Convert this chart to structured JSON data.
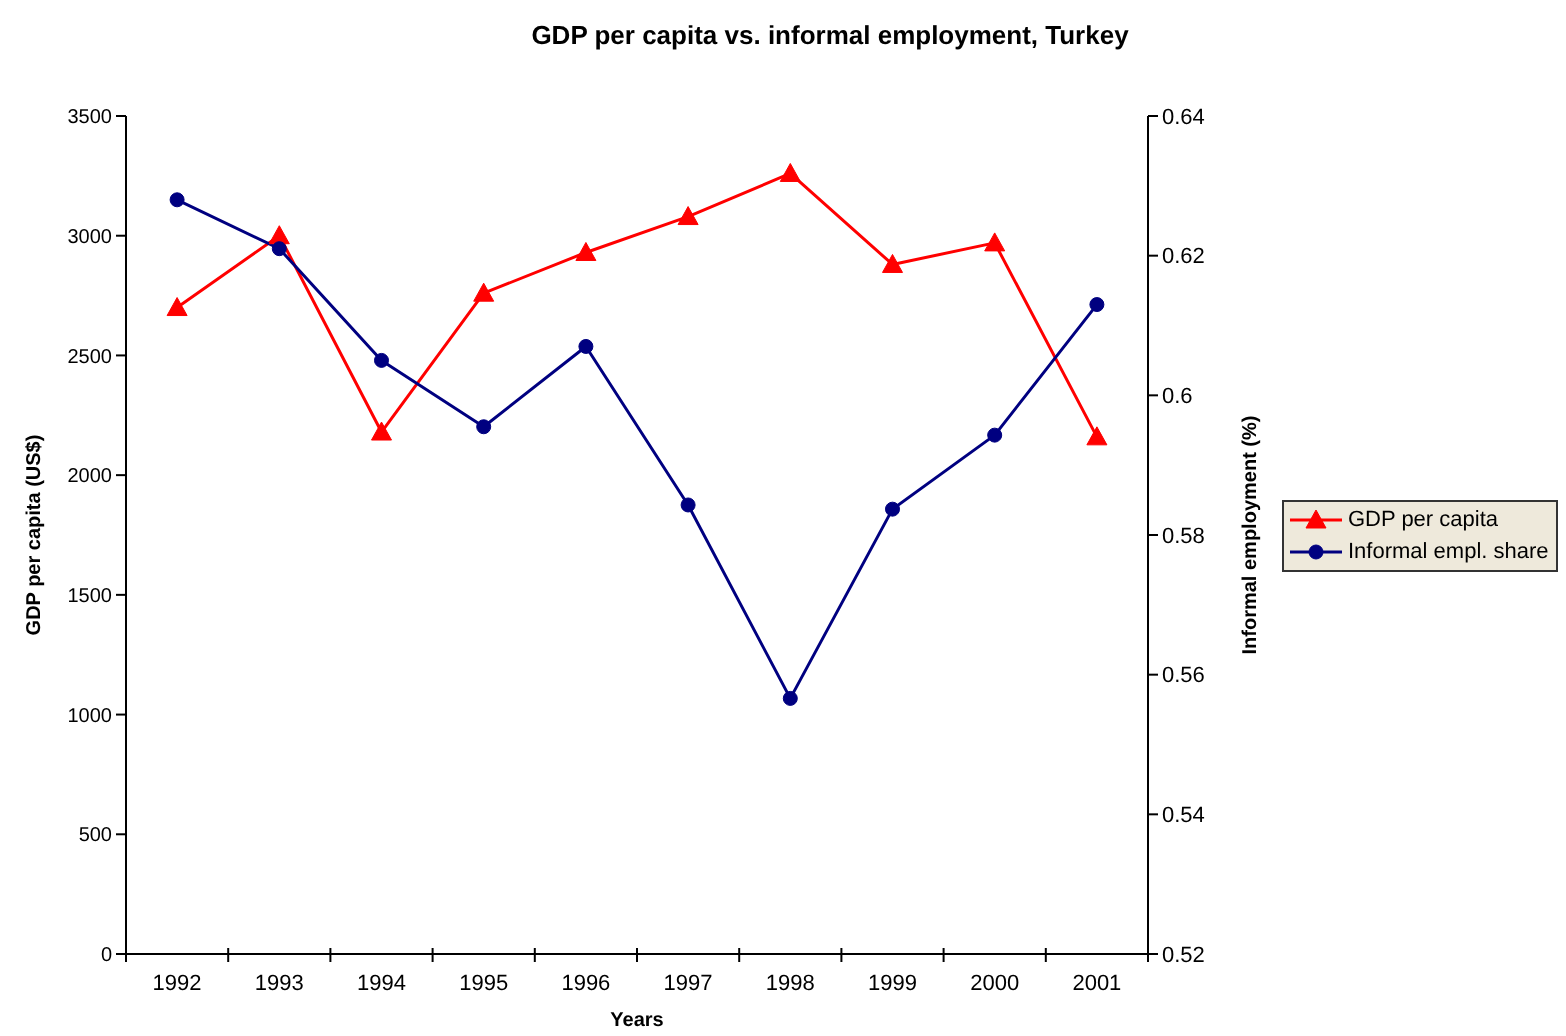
{
  "chart_data": {
    "type": "line",
    "title": "GDP per capita vs. informal employment, Turkey",
    "xlabel": "Years",
    "ylabel": "GDP per capita (US$)",
    "y2label": "Informal employment (%)",
    "categories": [
      "1992",
      "1993",
      "1994",
      "1995",
      "1996",
      "1997",
      "1998",
      "1999",
      "2000",
      "2001"
    ],
    "series": [
      {
        "name": "GDP per capita",
        "color": "#ff0000",
        "marker": "triangle",
        "values": [
          2700,
          3000,
          2180,
          2760,
          2930,
          3080,
          3260,
          2880,
          2970,
          2160
        ]
      },
      {
        "name": "Informal empl. share",
        "color": "#000080",
        "marker": "circle",
        "axis": "y2",
        "values": [
          0.628,
          0.621,
          0.605,
          0.5955,
          0.607,
          0.5843,
          0.5566,
          0.5837,
          0.5943,
          0.613
        ]
      }
    ],
    "ylim": [
      0,
      3500
    ],
    "yticks": [
      0,
      500,
      1000,
      1500,
      2000,
      2500,
      3000,
      3500
    ],
    "y2lim": [
      0.52,
      0.64
    ],
    "y2ticks": [
      0.52,
      0.54,
      0.56,
      0.58,
      0.6,
      0.62,
      0.64
    ],
    "legend": "right",
    "line_style": "solid"
  }
}
